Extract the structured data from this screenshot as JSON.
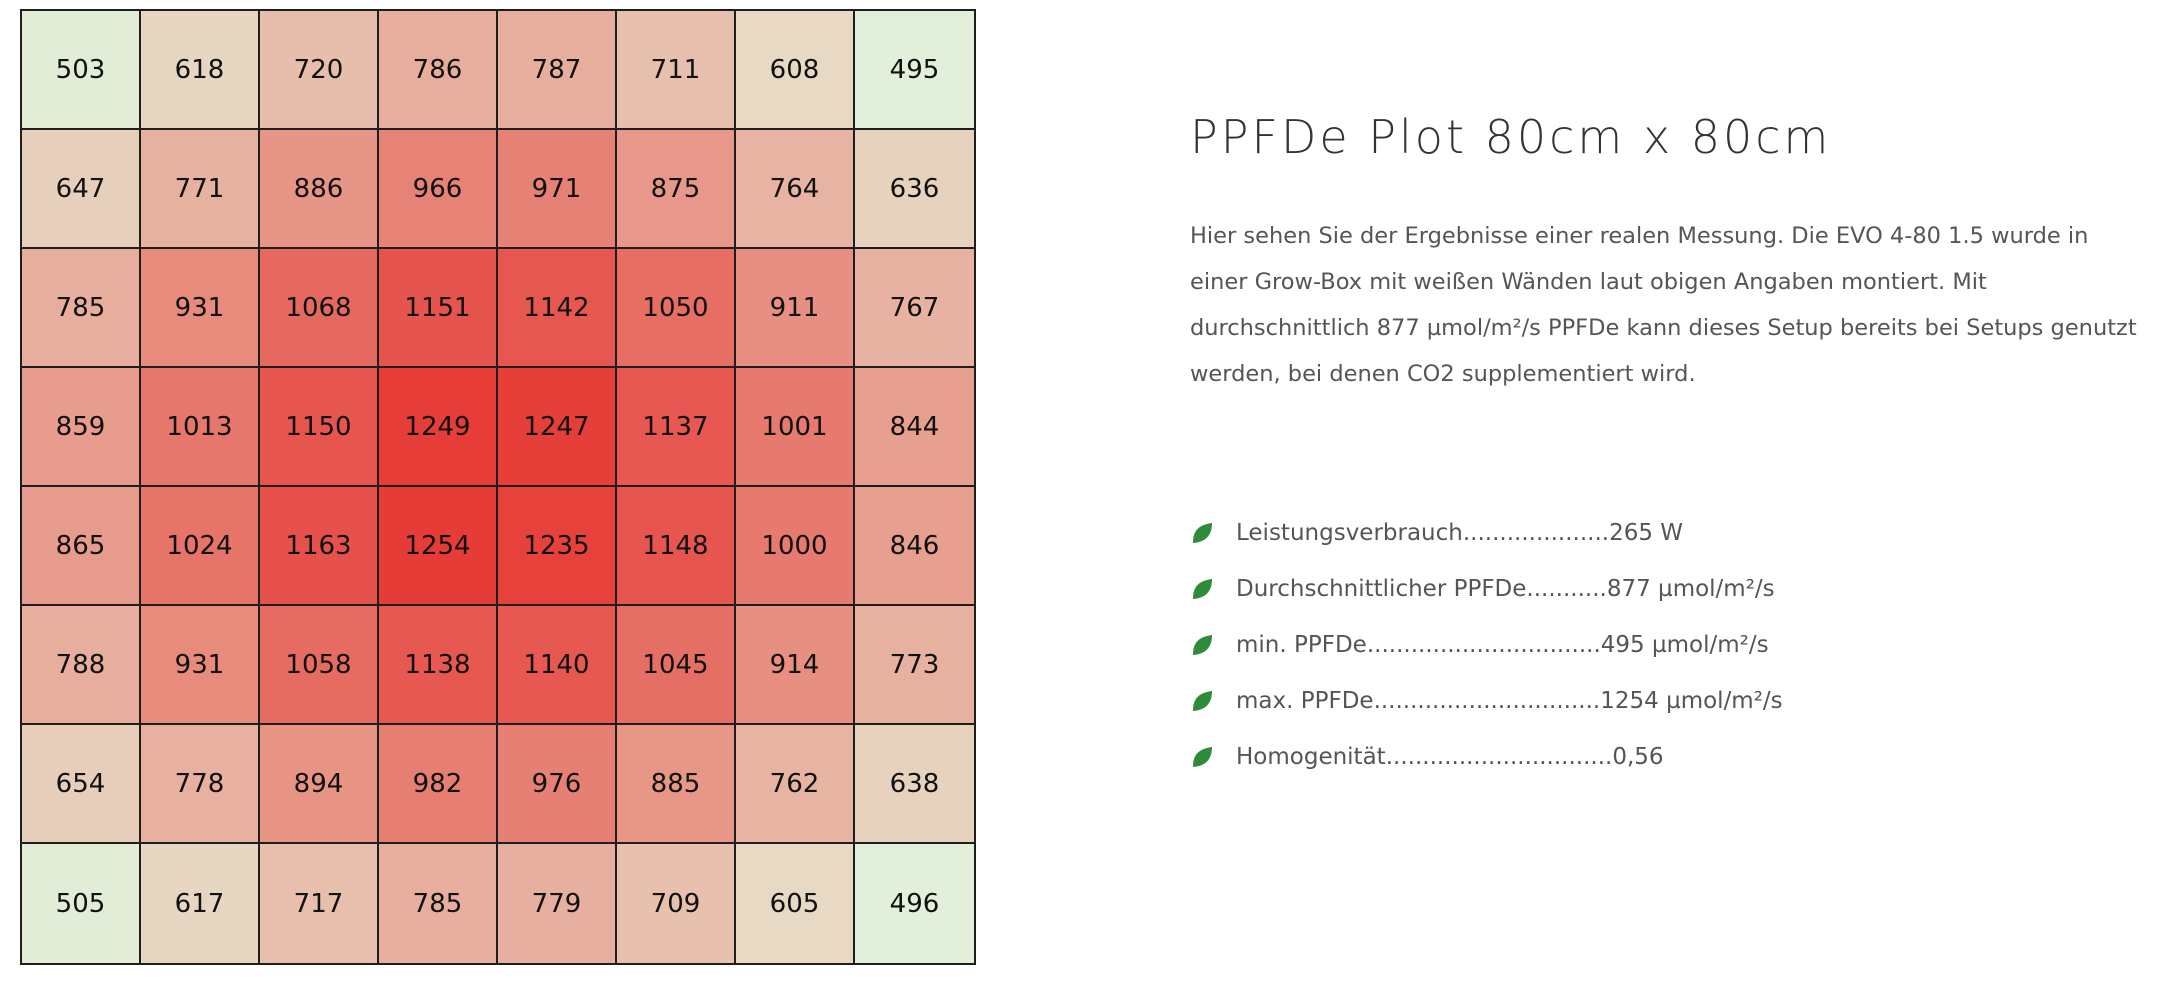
{
  "chart_data": {
    "type": "heatmap",
    "rows": 8,
    "cols": 8,
    "values": [
      [
        503,
        618,
        720,
        786,
        787,
        711,
        608,
        495
      ],
      [
        647,
        771,
        886,
        966,
        971,
        875,
        764,
        636
      ],
      [
        785,
        931,
        1068,
        1151,
        1142,
        1050,
        911,
        767
      ],
      [
        859,
        1013,
        1150,
        1249,
        1247,
        1137,
        1001,
        844
      ],
      [
        865,
        1024,
        1163,
        1254,
        1235,
        1148,
        1000,
        846
      ],
      [
        788,
        931,
        1058,
        1138,
        1140,
        1045,
        914,
        773
      ],
      [
        654,
        778,
        894,
        982,
        976,
        885,
        762,
        638
      ],
      [
        505,
        617,
        717,
        785,
        779,
        709,
        605,
        496
      ]
    ],
    "color_scale": {
      "low": "#e2efda",
      "mid": "#e7d7c2",
      "high": "#e63c37",
      "min_value": 495,
      "max_value": 1254
    },
    "grid_line_color": "#1e1e1e"
  },
  "info": {
    "title": "PPFDe Plot 80cm x 80cm",
    "description": "Hier sehen Sie der Ergebnisse einer realen Messung. Die EVO 4-80 1.5 wurde in einer Grow-Box mit weißen Wänden laut obigen Angaben montiert. Mit durchschnittlich 877 µmol/m²/s PPFDe kann dieses Setup bereits bei Setups genutzt werden, bei denen CO2 supplementiert wird.",
    "specs": [
      {
        "label": "Leistungsverbrauch",
        "dots": "....................",
        "value": "265 W",
        "icon": "leaf-icon"
      },
      {
        "label": "Durchschnittlicher PPFDe",
        "dots": "...........",
        "value": "877 µmol/m²/s",
        "icon": "leaf-icon"
      },
      {
        "label": "min. PPFDe",
        "dots": "................................",
        "value": "495 µmol/m²/s",
        "icon": "leaf-icon"
      },
      {
        "label": "max. PPFDe",
        "dots": "...............................",
        "value": "1254 µmol/m²/s",
        "icon": "leaf-icon"
      },
      {
        "label": "Homogenität",
        "dots": "...............................",
        "value": "0,56",
        "icon": "leaf-icon"
      }
    ],
    "leaf_color": "#2e8b3a"
  }
}
